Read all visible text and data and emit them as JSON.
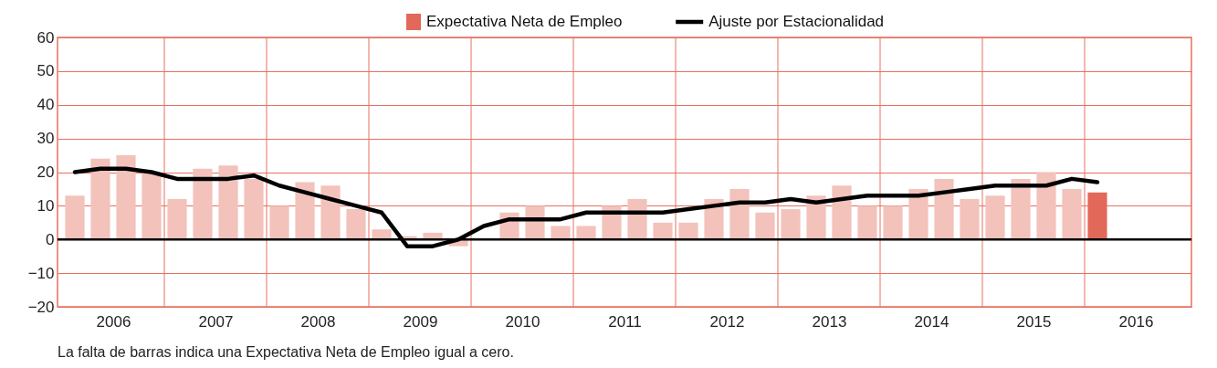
{
  "chart_data": {
    "type": "bar",
    "legend": "top",
    "grid": true,
    "x": [
      2006.125,
      2006.375,
      2006.625,
      2006.875,
      2007.125,
      2007.375,
      2007.625,
      2007.875,
      2008.125,
      2008.375,
      2008.625,
      2008.875,
      2009.125,
      2009.375,
      2009.625,
      2009.875,
      2010.125,
      2010.375,
      2010.625,
      2010.875,
      2011.125,
      2011.375,
      2011.625,
      2011.875,
      2012.125,
      2012.375,
      2012.625,
      2012.875,
      2013.125,
      2013.375,
      2013.625,
      2013.875,
      2014.125,
      2014.375,
      2014.625,
      2014.875,
      2015.125,
      2015.375,
      2015.625,
      2015.875,
      2016.125
    ],
    "xlim": [
      2006,
      2017
    ],
    "xticks": [
      {
        "value": 2006.5,
        "label": "2006"
      },
      {
        "value": 2007.5,
        "label": "2007"
      },
      {
        "value": 2008.5,
        "label": "2008"
      },
      {
        "value": 2009.5,
        "label": "2009"
      },
      {
        "value": 2010.5,
        "label": "2010"
      },
      {
        "value": 2011.5,
        "label": "2011"
      },
      {
        "value": 2012.5,
        "label": "2012"
      },
      {
        "value": 2013.5,
        "label": "2013"
      },
      {
        "value": 2014.5,
        "label": "2014"
      },
      {
        "value": 2015.5,
        "label": "2015"
      },
      {
        "value": 2016.5,
        "label": "2016"
      },
      {
        "value": 2007,
        "label": null
      },
      {
        "value": 2008,
        "label": null
      },
      {
        "value": 2009,
        "label": null
      },
      {
        "value": 2010,
        "label": null
      },
      {
        "value": 2011,
        "label": null
      },
      {
        "value": 2012,
        "label": null
      },
      {
        "value": 2013,
        "label": null
      },
      {
        "value": 2014,
        "label": null
      },
      {
        "value": 2015,
        "label": null
      },
      {
        "value": 2016,
        "label": null
      }
    ],
    "ylim": [
      -20,
      60
    ],
    "yticks": [
      -20,
      -10,
      0,
      10,
      20,
      30,
      40,
      50,
      60
    ],
    "series": [
      {
        "name": "Expectativa Neta de Empleo",
        "color": "#e2695a",
        "colors": [
          "#f2c2bb",
          "#f2c2bb",
          "#f2c2bb",
          "#f2c2bb",
          "#f2c2bb",
          "#f2c2bb",
          "#f2c2bb",
          "#f2c2bb",
          "#f2c2bb",
          "#f2c2bb",
          "#f2c2bb",
          "#f2c2bb",
          "#f2c2bb",
          "#f2c2bb",
          "#f2c2bb",
          "#f2c2bb",
          "#f2c2bb",
          "#f2c2bb",
          "#f2c2bb",
          "#f2c2bb",
          "#f2c2bb",
          "#f2c2bb",
          "#f2c2bb",
          "#f2c2bb",
          "#f2c2bb",
          "#f2c2bb",
          "#f2c2bb",
          "#f2c2bb",
          "#f2c2bb",
          "#f2c2bb",
          "#f2c2bb",
          "#f2c2bb",
          "#f2c2bb",
          "#f2c2bb",
          "#f2c2bb",
          "#f2c2bb",
          "#f2c2bb",
          "#f2c2bb",
          "#f2c2bb",
          "#f2c2bb",
          "#e2695a"
        ],
        "values": [
          13,
          24,
          25,
          20,
          12,
          21,
          22,
          18,
          10,
          17,
          16,
          9,
          3,
          1,
          2,
          -2,
          0,
          8,
          10,
          4,
          4,
          10,
          12,
          5,
          5,
          12,
          15,
          8,
          9,
          13,
          16,
          10,
          10,
          15,
          18,
          12,
          13,
          18,
          20,
          15,
          14
        ]
      },
      {
        "name": "Ajuste por Estacionalidad",
        "type": "line",
        "color": "#000000",
        "values": [
          20,
          21,
          21,
          20,
          18,
          18,
          18,
          19,
          16,
          14,
          12,
          10,
          8,
          -2,
          -2,
          0,
          4,
          6,
          6,
          6,
          8,
          8,
          8,
          8,
          9,
          10,
          11,
          11,
          12,
          11,
          12,
          13,
          13,
          13,
          14,
          15,
          16,
          16,
          16,
          18,
          17
        ]
      }
    ],
    "ref_lines": [
      {
        "axis": "y",
        "value": 0,
        "color": "#000000"
      }
    ],
    "annotations": [
      "La falta de barras indica una Expectativa Neta de Empleo igual a cero."
    ]
  }
}
